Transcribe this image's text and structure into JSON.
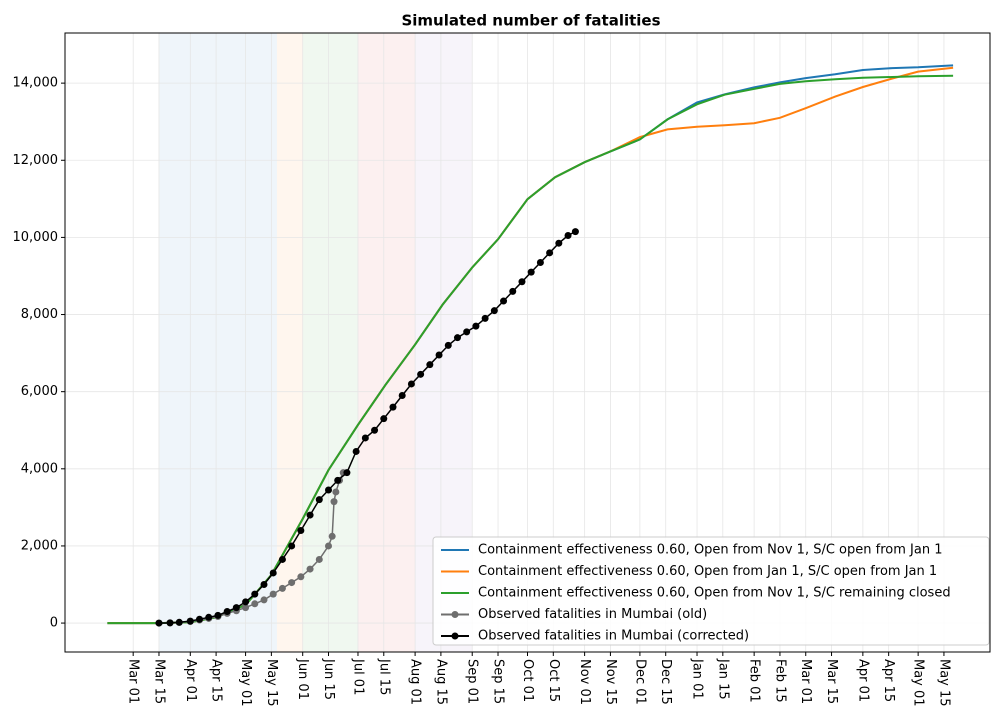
{
  "chart_data": {
    "type": "line",
    "title": "Simulated number of fatalities",
    "xlim": [
      -37,
      465
    ],
    "ylim": [
      -750,
      15300
    ],
    "grid": true,
    "legend": "lower right",
    "yticks": [
      0,
      {
        "value": 2000,
        "label": "2,000"
      },
      {
        "value": 4000,
        "label": "4,000"
      },
      {
        "value": 6000,
        "label": "6,000"
      },
      {
        "value": 8000,
        "label": "8,000"
      },
      {
        "value": 10000,
        "label": "10,000"
      },
      {
        "value": 12000,
        "label": "12,000"
      },
      {
        "value": 14000,
        "label": "14,000"
      }
    ],
    "xticks": [
      {
        "value": 0,
        "label": "Mar 01"
      },
      {
        "value": 14,
        "label": "Mar 15"
      },
      {
        "value": 31,
        "label": "Apr 01"
      },
      {
        "value": 45,
        "label": "Apr 15"
      },
      {
        "value": 61,
        "label": "May 01"
      },
      {
        "value": 75,
        "label": "May 15"
      },
      {
        "value": 92,
        "label": "Jun 01"
      },
      {
        "value": 106,
        "label": "Jun 15"
      },
      {
        "value": 122,
        "label": "Jul 01"
      },
      {
        "value": 136,
        "label": "Jul 15"
      },
      {
        "value": 153,
        "label": "Aug 01"
      },
      {
        "value": 167,
        "label": "Aug 15"
      },
      {
        "value": 184,
        "label": "Sep 01"
      },
      {
        "value": 198,
        "label": "Sep 15"
      },
      {
        "value": 214,
        "label": "Oct 01"
      },
      {
        "value": 228,
        "label": "Oct 15"
      },
      {
        "value": 245,
        "label": "Nov 01"
      },
      {
        "value": 259,
        "label": "Nov 15"
      },
      {
        "value": 275,
        "label": "Dec 01"
      },
      {
        "value": 289,
        "label": "Dec 15"
      },
      {
        "value": 306,
        "label": "Jan 01"
      },
      {
        "value": 320,
        "label": "Jan 15"
      },
      {
        "value": 337,
        "label": "Feb 01"
      },
      {
        "value": 351,
        "label": "Feb 15"
      },
      {
        "value": 365,
        "label": "Mar 01"
      },
      {
        "value": 379,
        "label": "Mar 15"
      },
      {
        "value": 396,
        "label": "Apr 01"
      },
      {
        "value": 410,
        "label": "Apr 15"
      },
      {
        "value": 426,
        "label": "May 01"
      },
      {
        "value": 440,
        "label": "May 15"
      }
    ],
    "regions": [
      {
        "start": 14,
        "end": 78,
        "color": "#1f77b4"
      },
      {
        "start": 78,
        "end": 92,
        "color": "#ff7f0e"
      },
      {
        "start": 92,
        "end": 122,
        "color": "#2ca02c"
      },
      {
        "start": 122,
        "end": 153,
        "color": "#d62728"
      },
      {
        "start": 153,
        "end": 184,
        "color": "#9467bd"
      }
    ],
    "series": [
      {
        "name": "Containment effectiveness 0.60, Open from Nov 1, S/C open from Jan 1",
        "color": "#1f77b4",
        "marker": false,
        "x": [
          -14,
          14,
          31,
          45,
          61,
          75,
          92,
          106,
          122,
          137,
          153,
          168,
          184,
          198,
          214,
          229,
          245,
          259,
          275,
          290,
          306,
          321,
          337,
          351,
          365,
          381,
          396,
          412,
          426,
          445
        ],
        "values": [
          0,
          0,
          20,
          150,
          470,
          1250,
          2700,
          3970,
          5140,
          6180,
          7220,
          8260,
          9220,
          9950,
          10990,
          11560,
          11950,
          12230,
          12540,
          13060,
          13500,
          13710,
          13890,
          14020,
          14130,
          14230,
          14340,
          14390,
          14410,
          14460
        ]
      },
      {
        "name": "Containment effectiveness 0.60, Open from Jan 1, S/C open from Jan 1",
        "color": "#ff7f0e",
        "marker": false,
        "x": [
          -14,
          14,
          31,
          45,
          61,
          75,
          92,
          106,
          122,
          137,
          153,
          168,
          184,
          198,
          214,
          229,
          245,
          259,
          275,
          290,
          306,
          321,
          337,
          351,
          365,
          381,
          396,
          412,
          426,
          445
        ],
        "values": [
          0,
          0,
          20,
          150,
          470,
          1250,
          2700,
          3970,
          5140,
          6180,
          7220,
          8260,
          9220,
          9950,
          10990,
          11560,
          11950,
          12230,
          12600,
          12800,
          12870,
          12910,
          12960,
          13100,
          13350,
          13650,
          13900,
          14120,
          14300,
          14400
        ]
      },
      {
        "name": "Containment effectiveness 0.60, Open from Nov 1, S/C remaining closed",
        "color": "#2ca02c",
        "marker": false,
        "x": [
          -14,
          14,
          31,
          45,
          61,
          75,
          92,
          106,
          122,
          137,
          153,
          168,
          184,
          198,
          214,
          229,
          245,
          259,
          275,
          290,
          306,
          321,
          337,
          351,
          365,
          381,
          396,
          412,
          426,
          445
        ],
        "values": [
          0,
          0,
          20,
          150,
          470,
          1250,
          2700,
          3970,
          5140,
          6180,
          7220,
          8260,
          9220,
          9950,
          10990,
          11560,
          11950,
          12230,
          12540,
          13060,
          13450,
          13700,
          13850,
          13980,
          14050,
          14100,
          14140,
          14160,
          14180,
          14190
        ]
      },
      {
        "name": "Observed fatalities in Mumbai (old)",
        "color": "#6e6e6e",
        "marker": true,
        "x": [
          14,
          20,
          25,
          31,
          36,
          41,
          46,
          51,
          56,
          61,
          66,
          71,
          76,
          81,
          86,
          91,
          96,
          101,
          106,
          108,
          109,
          110,
          112,
          114
        ],
        "values": [
          0,
          5,
          15,
          40,
          80,
          120,
          170,
          250,
          320,
          400,
          500,
          600,
          750,
          900,
          1050,
          1200,
          1400,
          1650,
          2000,
          2250,
          3150,
          3400,
          3700,
          3900
        ]
      },
      {
        "name": "Observed fatalities in Mumbai (corrected)",
        "color": "#000000",
        "marker": true,
        "x": [
          14,
          20,
          25,
          31,
          36,
          41,
          46,
          51,
          56,
          61,
          66,
          71,
          76,
          81,
          86,
          91,
          96,
          101,
          106,
          111,
          116,
          121,
          126,
          131,
          136,
          141,
          146,
          151,
          156,
          161,
          166,
          171,
          176,
          181,
          186,
          191,
          196,
          201,
          206,
          211,
          216,
          221,
          226,
          231,
          236,
          240
        ],
        "values": [
          0,
          5,
          20,
          50,
          100,
          150,
          200,
          300,
          400,
          550,
          750,
          1000,
          1300,
          1650,
          2000,
          2400,
          2800,
          3200,
          3450,
          3700,
          3900,
          4450,
          4800,
          5000,
          5300,
          5600,
          5900,
          6200,
          6450,
          6700,
          6950,
          7200,
          7400,
          7550,
          7700,
          7900,
          8100,
          8350,
          8600,
          8850,
          9100,
          9350,
          9600,
          9850,
          10050,
          10150
        ]
      }
    ]
  }
}
